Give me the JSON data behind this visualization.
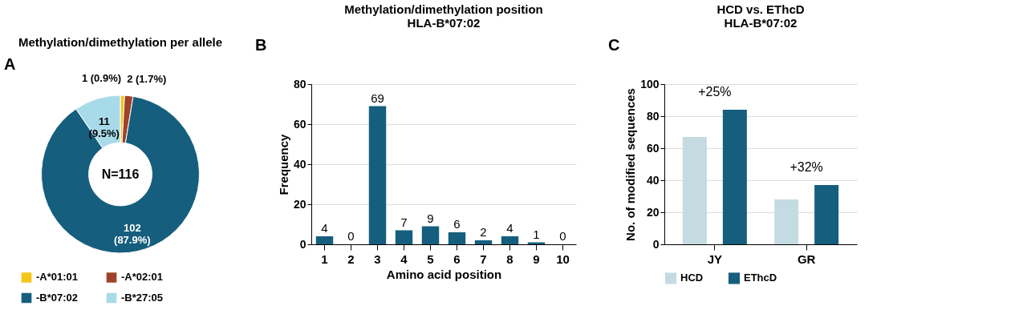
{
  "chart_data": [
    {
      "type": "donut",
      "title": "Methylation/dimethylation per allele",
      "categories": [
        "-A*01:01",
        "-A*02:01",
        "-B*07:02",
        "-B*27:05"
      ],
      "values": [
        1,
        2,
        102,
        11
      ],
      "colors": [
        "#f5c518",
        "#a0412a",
        "#165e7d",
        "#a8dbe9"
      ],
      "value_labels": [
        "1 (0.9%)",
        "2 (1.7%)",
        "102\n(87.9%)",
        "11\n(9.5%)"
      ],
      "legend": "bottom",
      "annotations": [
        "A",
        "N=116"
      ]
    },
    {
      "type": "bar",
      "title": "Methylation/dimethylation position",
      "subtitle": "HLA-B*07:02",
      "xlabel": "Amino acid position",
      "ylabel": "Frequency",
      "categories": [
        "1",
        "2",
        "3",
        "4",
        "5",
        "6",
        "7",
        "8",
        "9",
        "10"
      ],
      "series": [
        {
          "color": "#165e7d",
          "values": [
            4,
            0,
            69,
            7,
            9,
            6,
            2,
            4,
            1,
            0
          ]
        }
      ],
      "ylim": [
        0,
        80
      ],
      "yticks": [
        0,
        20,
        40,
        60,
        80
      ],
      "grid": "y",
      "data_labels": true,
      "annotations": [
        "B"
      ]
    },
    {
      "type": "bar",
      "title": "HCD vs. EThcD",
      "subtitle": "HLA-B*07:02",
      "ylabel": "No. of modified sequences",
      "categories": [
        "JY",
        "GR"
      ],
      "series": [
        {
          "name": "HCD",
          "color": "#c5dbe2",
          "values": [
            67,
            28
          ]
        },
        {
          "name": "EThcD",
          "color": "#165e7d",
          "values": [
            84,
            37
          ]
        }
      ],
      "ylim": [
        0,
        100
      ],
      "yticks": [
        0,
        20,
        40,
        60,
        80,
        100
      ],
      "grid": "y",
      "legend": "bottom",
      "annotations": [
        "C",
        "+25%",
        "+32%"
      ]
    }
  ]
}
